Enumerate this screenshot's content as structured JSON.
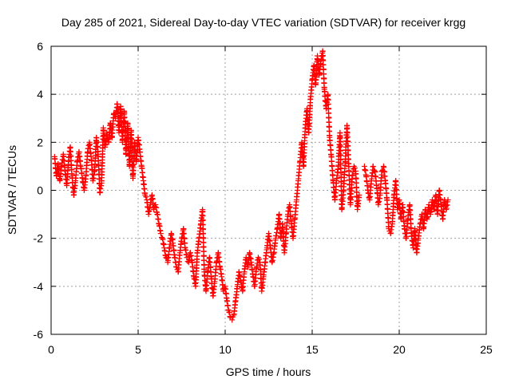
{
  "chart_data": {
    "type": "scatter",
    "title": "Day 285 of 2021, Sidereal Day-to-day VTEC variation (SDTVAR) for receiver krgg",
    "xlabel": "GPS time / hours",
    "ylabel": "SDTVAR / TECUs",
    "xlim": [
      0,
      25
    ],
    "ylim": [
      -6,
      6
    ],
    "xticks": [
      0,
      5,
      10,
      15,
      20,
      25
    ],
    "yticks": [
      -6,
      -4,
      -2,
      0,
      2,
      4,
      6
    ],
    "grid": true,
    "marker": "+",
    "color": "#ff0000",
    "series": [
      {
        "name": "SDTVAR",
        "points": [
          [
            0.2,
            1.4
          ],
          [
            0.3,
            0.6
          ],
          [
            0.4,
            1.1
          ],
          [
            0.5,
            0.4
          ],
          [
            0.6,
            1.0
          ],
          [
            0.7,
            1.5
          ],
          [
            0.8,
            0.8
          ],
          [
            0.9,
            0.2
          ],
          [
            1.0,
            1.2
          ],
          [
            1.1,
            1.8
          ],
          [
            1.2,
            0.6
          ],
          [
            1.3,
            -0.2
          ],
          [
            1.4,
            0.4
          ],
          [
            1.5,
            1.2
          ],
          [
            1.6,
            1.6
          ],
          [
            1.7,
            1.0
          ],
          [
            1.8,
            0.5
          ],
          [
            1.9,
            0.0
          ],
          [
            2.0,
            0.6
          ],
          [
            2.1,
            1.6
          ],
          [
            2.2,
            2.0
          ],
          [
            2.3,
            1.4
          ],
          [
            2.4,
            0.4
          ],
          [
            2.5,
            0.8
          ],
          [
            2.6,
            2.2
          ],
          [
            2.7,
            1.5
          ],
          [
            2.8,
            -0.1
          ],
          [
            2.9,
            0.3
          ],
          [
            3.0,
            2.6
          ],
          [
            3.1,
            1.8
          ],
          [
            3.2,
            2.4
          ],
          [
            3.3,
            2.0
          ],
          [
            3.4,
            2.8
          ],
          [
            3.5,
            2.2
          ],
          [
            3.6,
            3.2
          ],
          [
            3.7,
            3.0
          ],
          [
            3.8,
            3.6
          ],
          [
            3.9,
            2.4
          ],
          [
            4.0,
            3.5
          ],
          [
            4.1,
            2.0
          ],
          [
            4.2,
            3.3
          ],
          [
            4.3,
            1.5
          ],
          [
            4.4,
            2.8
          ],
          [
            4.5,
            1.0
          ],
          [
            4.6,
            2.5
          ],
          [
            4.7,
            0.5
          ],
          [
            4.8,
            2.0
          ],
          [
            4.9,
            1.2
          ],
          [
            5.0,
            2.2
          ],
          [
            5.1,
            1.6
          ],
          [
            5.2,
            1.0
          ],
          [
            5.3,
            0.4
          ],
          [
            5.4,
            -0.2
          ],
          [
            5.5,
            -0.4
          ],
          [
            5.6,
            -1.0
          ],
          [
            5.7,
            -0.6
          ],
          [
            5.8,
            -0.2
          ],
          [
            5.9,
            -0.8
          ],
          [
            6.0,
            -0.6
          ],
          [
            6.1,
            -1.0
          ],
          [
            6.2,
            -1.4
          ],
          [
            6.3,
            -1.8
          ],
          [
            6.4,
            -2.0
          ],
          [
            6.5,
            -2.4
          ],
          [
            6.6,
            -2.8
          ],
          [
            6.7,
            -3.0
          ],
          [
            6.8,
            -2.4
          ],
          [
            6.9,
            -1.8
          ],
          [
            7.0,
            -2.2
          ],
          [
            7.1,
            -2.8
          ],
          [
            7.2,
            -3.2
          ],
          [
            7.3,
            -3.4
          ],
          [
            7.4,
            -2.6
          ],
          [
            7.5,
            -2.0
          ],
          [
            7.6,
            -1.6
          ],
          [
            7.7,
            -2.4
          ],
          [
            7.8,
            -2.8
          ],
          [
            7.9,
            -3.0
          ],
          [
            8.0,
            -2.6
          ],
          [
            8.1,
            -3.0
          ],
          [
            8.2,
            -3.6
          ],
          [
            8.3,
            -4.0
          ],
          [
            8.4,
            -2.6
          ],
          [
            8.5,
            -2.0
          ],
          [
            8.6,
            -1.4
          ],
          [
            8.7,
            -0.8
          ],
          [
            8.8,
            -3.4
          ],
          [
            8.9,
            -4.2
          ],
          [
            9.0,
            -3.4
          ],
          [
            9.1,
            -2.8
          ],
          [
            9.2,
            -3.6
          ],
          [
            9.3,
            -4.4
          ],
          [
            9.4,
            -3.8
          ],
          [
            9.5,
            -3.0
          ],
          [
            9.6,
            -2.6
          ],
          [
            9.7,
            -3.2
          ],
          [
            9.8,
            -3.6
          ],
          [
            9.9,
            -4.2
          ],
          [
            10.0,
            -4.0
          ],
          [
            10.1,
            -4.6
          ],
          [
            10.2,
            -5.0
          ],
          [
            10.3,
            -5.3
          ],
          [
            10.4,
            -5.4
          ],
          [
            10.5,
            -5.2
          ],
          [
            10.6,
            -4.6
          ],
          [
            10.7,
            -4.0
          ],
          [
            10.8,
            -3.4
          ],
          [
            10.9,
            -3.8
          ],
          [
            11.0,
            -4.2
          ],
          [
            11.1,
            -3.4
          ],
          [
            11.2,
            -2.8
          ],
          [
            11.3,
            -3.2
          ],
          [
            11.4,
            -2.6
          ],
          [
            11.5,
            -3.0
          ],
          [
            11.6,
            -3.6
          ],
          [
            11.7,
            -4.0
          ],
          [
            11.8,
            -3.2
          ],
          [
            11.9,
            -2.8
          ],
          [
            12.0,
            -3.0
          ],
          [
            12.1,
            -4.2
          ],
          [
            12.2,
            -3.6
          ],
          [
            12.3,
            -3.0
          ],
          [
            12.4,
            -2.4
          ],
          [
            12.5,
            -1.8
          ],
          [
            12.6,
            -2.4
          ],
          [
            12.7,
            -3.0
          ],
          [
            12.8,
            -2.6
          ],
          [
            12.9,
            -2.0
          ],
          [
            13.0,
            -1.6
          ],
          [
            13.1,
            -1.0
          ],
          [
            13.2,
            -2.0
          ],
          [
            13.3,
            -1.4
          ],
          [
            13.4,
            -2.6
          ],
          [
            13.5,
            -1.8
          ],
          [
            13.6,
            -1.0
          ],
          [
            13.7,
            -0.6
          ],
          [
            13.8,
            -1.4
          ],
          [
            13.9,
            -2.0
          ],
          [
            14.0,
            -1.2
          ],
          [
            14.1,
            -0.4
          ],
          [
            14.2,
            0.4
          ],
          [
            14.3,
            1.2
          ],
          [
            14.4,
            2.0
          ],
          [
            14.5,
            1.0
          ],
          [
            14.6,
            2.6
          ],
          [
            14.7,
            3.4
          ],
          [
            14.8,
            2.4
          ],
          [
            14.9,
            3.8
          ],
          [
            15.0,
            4.6
          ],
          [
            15.1,
            5.2
          ],
          [
            15.2,
            4.4
          ],
          [
            15.3,
            5.6
          ],
          [
            15.4,
            4.8
          ],
          [
            15.5,
            5.4
          ],
          [
            15.6,
            5.8
          ],
          [
            15.7,
            4.2
          ],
          [
            15.8,
            3.4
          ],
          [
            15.9,
            4.0
          ],
          [
            16.0,
            2.2
          ],
          [
            16.1,
            1.4
          ],
          [
            16.2,
            0.4
          ],
          [
            16.3,
            -0.4
          ],
          [
            16.4,
            0.4
          ],
          [
            16.5,
            1.0
          ],
          [
            16.6,
            2.4
          ],
          [
            16.7,
            -0.8
          ],
          [
            16.8,
            0.0
          ],
          [
            16.9,
            1.2
          ],
          [
            17.0,
            2.7
          ],
          [
            17.1,
            1.0
          ],
          [
            17.2,
            -0.6
          ],
          [
            17.3,
            0.6
          ],
          [
            17.4,
            1.0
          ],
          [
            17.5,
            0.8
          ],
          [
            17.6,
            -0.8
          ],
          [
            17.7,
            -0.2
          ],
          [
            18.0,
            1.0
          ],
          [
            18.1,
            0.6
          ],
          [
            18.2,
            0.0
          ],
          [
            18.3,
            -0.4
          ],
          [
            18.4,
            0.4
          ],
          [
            18.5,
            1.0
          ],
          [
            18.6,
            0.8
          ],
          [
            18.7,
            0.2
          ],
          [
            18.8,
            -0.6
          ],
          [
            18.9,
            -0.2
          ],
          [
            19.0,
            0.8
          ],
          [
            19.1,
            1.0
          ],
          [
            19.2,
            0.4
          ],
          [
            19.3,
            -0.4
          ],
          [
            19.4,
            -1.6
          ],
          [
            19.5,
            -1.8
          ],
          [
            19.6,
            -1.4
          ],
          [
            19.7,
            -0.2
          ],
          [
            19.8,
            0.4
          ],
          [
            19.9,
            -0.8
          ],
          [
            20.0,
            -0.4
          ],
          [
            20.1,
            -1.2
          ],
          [
            20.2,
            -0.6
          ],
          [
            20.3,
            -1.6
          ],
          [
            20.4,
            -2.0
          ],
          [
            20.5,
            -1.2
          ],
          [
            20.6,
            -0.6
          ],
          [
            20.7,
            -1.8
          ],
          [
            20.8,
            -2.4
          ],
          [
            20.9,
            -1.6
          ],
          [
            21.0,
            -2.6
          ],
          [
            21.1,
            -2.0
          ],
          [
            21.2,
            -1.4
          ],
          [
            21.3,
            -1.0
          ],
          [
            21.4,
            -1.6
          ],
          [
            21.5,
            -0.8
          ],
          [
            21.6,
            -1.2
          ],
          [
            21.7,
            -0.6
          ],
          [
            21.8,
            -1.0
          ],
          [
            21.9,
            -0.4
          ],
          [
            22.0,
            -0.8
          ],
          [
            22.1,
            -0.2
          ],
          [
            22.2,
            -1.0
          ],
          [
            22.3,
            0.0
          ],
          [
            22.4,
            -0.6
          ],
          [
            22.5,
            -1.2
          ],
          [
            22.6,
            -0.4
          ],
          [
            22.7,
            -0.8
          ],
          [
            22.8,
            -0.4
          ]
        ]
      }
    ]
  }
}
